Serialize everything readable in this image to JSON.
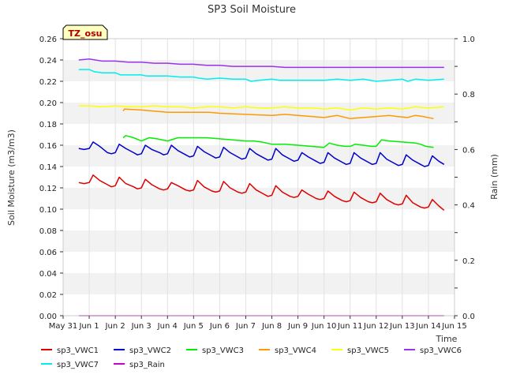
{
  "chart_data": {
    "type": "line",
    "title": "SP3 Soil Moisture",
    "xlabel": "Time",
    "ylabel": "Soil Moisture (m3/m3)",
    "y2label": "Rain (mm)",
    "badge": "TZ_osu",
    "ylim": [
      0,
      0.26
    ],
    "y2lim": [
      0,
      1.0
    ],
    "xlim": [
      "May 31",
      "Jun 15"
    ],
    "x_ticks": [
      "May 31",
      "Jun 1",
      "Jun 2",
      "Jun 3",
      "Jun 4",
      "Jun 5",
      "Jun 6",
      "Jun 7",
      "Jun 8",
      "Jun 9",
      "Jun 10",
      "Jun 11",
      "Jun 12",
      "Jun 13",
      "Jun 14",
      "Jun 15"
    ],
    "y_ticks": [
      "0.00",
      "0.02",
      "0.04",
      "0.06",
      "0.08",
      "0.10",
      "0.12",
      "0.14",
      "0.16",
      "0.18",
      "0.20",
      "0.22",
      "0.24",
      "0.26"
    ],
    "y2_ticks": [
      "0.0",
      "0.2",
      "0.4",
      "0.6",
      "0.8",
      "1.0"
    ],
    "grid": true,
    "legend_position": "bottom",
    "series": [
      {
        "name": "sp3_VWC1",
        "color": "#dd0000",
        "axis": "left",
        "points": [
          [
            0.6,
            0.125
          ],
          [
            0.8,
            0.124
          ],
          [
            1.0,
            0.125
          ],
          [
            1.15,
            0.132
          ],
          [
            1.4,
            0.127
          ],
          [
            1.7,
            0.123
          ],
          [
            1.85,
            0.121
          ],
          [
            2.0,
            0.122
          ],
          [
            2.15,
            0.13
          ],
          [
            2.4,
            0.124
          ],
          [
            2.7,
            0.121
          ],
          [
            2.85,
            0.119
          ],
          [
            3.0,
            0.12
          ],
          [
            3.15,
            0.128
          ],
          [
            3.4,
            0.123
          ],
          [
            3.7,
            0.119
          ],
          [
            3.85,
            0.118
          ],
          [
            4.0,
            0.119
          ],
          [
            4.15,
            0.125
          ],
          [
            4.4,
            0.122
          ],
          [
            4.7,
            0.118
          ],
          [
            4.85,
            0.117
          ],
          [
            5.0,
            0.118
          ],
          [
            5.15,
            0.127
          ],
          [
            5.4,
            0.121
          ],
          [
            5.7,
            0.117
          ],
          [
            5.85,
            0.116
          ],
          [
            6.0,
            0.117
          ],
          [
            6.15,
            0.126
          ],
          [
            6.4,
            0.12
          ],
          [
            6.7,
            0.116
          ],
          [
            6.85,
            0.115
          ],
          [
            7.0,
            0.116
          ],
          [
            7.15,
            0.124
          ],
          [
            7.4,
            0.118
          ],
          [
            7.7,
            0.114
          ],
          [
            7.85,
            0.112
          ],
          [
            8.0,
            0.113
          ],
          [
            8.15,
            0.122
          ],
          [
            8.4,
            0.116
          ],
          [
            8.7,
            0.112
          ],
          [
            8.85,
            0.111
          ],
          [
            9.0,
            0.112
          ],
          [
            9.15,
            0.118
          ],
          [
            9.4,
            0.114
          ],
          [
            9.7,
            0.11
          ],
          [
            9.85,
            0.109
          ],
          [
            10.0,
            0.11
          ],
          [
            10.15,
            0.117
          ],
          [
            10.4,
            0.112
          ],
          [
            10.7,
            0.108
          ],
          [
            10.85,
            0.107
          ],
          [
            11.0,
            0.108
          ],
          [
            11.15,
            0.116
          ],
          [
            11.4,
            0.111
          ],
          [
            11.7,
            0.107
          ],
          [
            11.85,
            0.106
          ],
          [
            12.0,
            0.107
          ],
          [
            12.15,
            0.115
          ],
          [
            12.4,
            0.109
          ],
          [
            12.7,
            0.105
          ],
          [
            12.85,
            0.104
          ],
          [
            13.0,
            0.105
          ],
          [
            13.15,
            0.113
          ],
          [
            13.4,
            0.106
          ],
          [
            13.7,
            0.102
          ],
          [
            13.85,
            0.101
          ],
          [
            14.0,
            0.102
          ],
          [
            14.15,
            0.109
          ],
          [
            14.4,
            0.103
          ],
          [
            14.6,
            0.099
          ]
        ]
      },
      {
        "name": "sp3_VWC2",
        "color": "#0000cc",
        "axis": "left",
        "points": [
          [
            0.6,
            0.157
          ],
          [
            0.8,
            0.156
          ],
          [
            1.0,
            0.157
          ],
          [
            1.15,
            0.163
          ],
          [
            1.4,
            0.159
          ],
          [
            1.7,
            0.153
          ],
          [
            1.85,
            0.152
          ],
          [
            2.0,
            0.153
          ],
          [
            2.15,
            0.161
          ],
          [
            2.4,
            0.157
          ],
          [
            2.7,
            0.153
          ],
          [
            2.85,
            0.151
          ],
          [
            3.0,
            0.152
          ],
          [
            3.15,
            0.16
          ],
          [
            3.4,
            0.156
          ],
          [
            3.7,
            0.153
          ],
          [
            3.85,
            0.151
          ],
          [
            4.0,
            0.152
          ],
          [
            4.15,
            0.16
          ],
          [
            4.4,
            0.155
          ],
          [
            4.7,
            0.151
          ],
          [
            4.85,
            0.149
          ],
          [
            5.0,
            0.15
          ],
          [
            5.15,
            0.159
          ],
          [
            5.4,
            0.154
          ],
          [
            5.7,
            0.15
          ],
          [
            5.85,
            0.148
          ],
          [
            6.0,
            0.149
          ],
          [
            6.15,
            0.158
          ],
          [
            6.4,
            0.153
          ],
          [
            6.7,
            0.149
          ],
          [
            6.85,
            0.147
          ],
          [
            7.0,
            0.148
          ],
          [
            7.15,
            0.157
          ],
          [
            7.4,
            0.152
          ],
          [
            7.7,
            0.148
          ],
          [
            7.85,
            0.146
          ],
          [
            8.0,
            0.147
          ],
          [
            8.15,
            0.157
          ],
          [
            8.4,
            0.151
          ],
          [
            8.7,
            0.147
          ],
          [
            8.85,
            0.145
          ],
          [
            9.0,
            0.146
          ],
          [
            9.15,
            0.153
          ],
          [
            9.4,
            0.149
          ],
          [
            9.7,
            0.145
          ],
          [
            9.85,
            0.143
          ],
          [
            10.0,
            0.144
          ],
          [
            10.15,
            0.153
          ],
          [
            10.4,
            0.148
          ],
          [
            10.7,
            0.144
          ],
          [
            10.85,
            0.142
          ],
          [
            11.0,
            0.143
          ],
          [
            11.15,
            0.153
          ],
          [
            11.4,
            0.148
          ],
          [
            11.7,
            0.144
          ],
          [
            11.85,
            0.142
          ],
          [
            12.0,
            0.143
          ],
          [
            12.15,
            0.153
          ],
          [
            12.4,
            0.147
          ],
          [
            12.7,
            0.143
          ],
          [
            12.85,
            0.141
          ],
          [
            13.0,
            0.142
          ],
          [
            13.15,
            0.151
          ],
          [
            13.4,
            0.146
          ],
          [
            13.7,
            0.142
          ],
          [
            13.85,
            0.14
          ],
          [
            14.0,
            0.141
          ],
          [
            14.15,
            0.15
          ],
          [
            14.4,
            0.145
          ],
          [
            14.6,
            0.142
          ]
        ]
      },
      {
        "name": "sp3_VWC3",
        "color": "#00ee00",
        "axis": "left",
        "points": [
          [
            2.3,
            0.167
          ],
          [
            2.4,
            0.169
          ],
          [
            2.7,
            0.167
          ],
          [
            3.0,
            0.164
          ],
          [
            3.3,
            0.167
          ],
          [
            3.6,
            0.166
          ],
          [
            4.0,
            0.164
          ],
          [
            4.4,
            0.167
          ],
          [
            5.0,
            0.167
          ],
          [
            5.5,
            0.167
          ],
          [
            6.0,
            0.166
          ],
          [
            6.5,
            0.165
          ],
          [
            7.0,
            0.164
          ],
          [
            7.3,
            0.164
          ],
          [
            7.6,
            0.163
          ],
          [
            8.0,
            0.161
          ],
          [
            8.5,
            0.161
          ],
          [
            9.0,
            0.16
          ],
          [
            9.5,
            0.159
          ],
          [
            10.0,
            0.158
          ],
          [
            10.2,
            0.162
          ],
          [
            10.5,
            0.16
          ],
          [
            10.8,
            0.159
          ],
          [
            11.0,
            0.159
          ],
          [
            11.2,
            0.161
          ],
          [
            11.5,
            0.16
          ],
          [
            11.8,
            0.159
          ],
          [
            12.0,
            0.159
          ],
          [
            12.2,
            0.165
          ],
          [
            12.5,
            0.164
          ],
          [
            13.0,
            0.163
          ],
          [
            13.5,
            0.162
          ],
          [
            13.7,
            0.161
          ],
          [
            13.9,
            0.159
          ],
          [
            14.2,
            0.158
          ]
        ]
      },
      {
        "name": "sp3_VWC4",
        "color": "#ff9900",
        "axis": "left",
        "points": [
          [
            2.3,
            0.192
          ],
          [
            2.35,
            0.194
          ],
          [
            3.0,
            0.193
          ],
          [
            4.0,
            0.191
          ],
          [
            5.0,
            0.191
          ],
          [
            5.6,
            0.191
          ],
          [
            6.0,
            0.19
          ],
          [
            7.0,
            0.189
          ],
          [
            8.0,
            0.188
          ],
          [
            8.5,
            0.189
          ],
          [
            9.0,
            0.188
          ],
          [
            10.0,
            0.186
          ],
          [
            10.5,
            0.188
          ],
          [
            11.0,
            0.185
          ],
          [
            11.5,
            0.186
          ],
          [
            12.0,
            0.187
          ],
          [
            12.5,
            0.188
          ],
          [
            12.8,
            0.187
          ],
          [
            13.2,
            0.186
          ],
          [
            13.5,
            0.188
          ],
          [
            13.8,
            0.187
          ],
          [
            14.2,
            0.185
          ]
        ]
      },
      {
        "name": "sp3_VWC5",
        "color": "#ffff00",
        "axis": "left",
        "points": [
          [
            0.6,
            0.197
          ],
          [
            1.0,
            0.197
          ],
          [
            1.5,
            0.196
          ],
          [
            2.0,
            0.197
          ],
          [
            2.5,
            0.196
          ],
          [
            3.0,
            0.196
          ],
          [
            3.5,
            0.197
          ],
          [
            4.0,
            0.196
          ],
          [
            4.5,
            0.196
          ],
          [
            5.0,
            0.195
          ],
          [
            5.5,
            0.196
          ],
          [
            6.0,
            0.196
          ],
          [
            6.5,
            0.195
          ],
          [
            7.0,
            0.196
          ],
          [
            7.5,
            0.195
          ],
          [
            8.0,
            0.195
          ],
          [
            8.5,
            0.196
          ],
          [
            9.0,
            0.195
          ],
          [
            9.5,
            0.195
          ],
          [
            10.0,
            0.194
          ],
          [
            10.5,
            0.195
          ],
          [
            11.0,
            0.193
          ],
          [
            11.5,
            0.195
          ],
          [
            12.0,
            0.194
          ],
          [
            12.5,
            0.195
          ],
          [
            13.0,
            0.194
          ],
          [
            13.5,
            0.196
          ],
          [
            14.0,
            0.195
          ],
          [
            14.6,
            0.196
          ]
        ]
      },
      {
        "name": "sp3_VWC6",
        "color": "#9933ee",
        "axis": "left",
        "points": [
          [
            0.6,
            0.24
          ],
          [
            1.0,
            0.241
          ],
          [
            1.5,
            0.239
          ],
          [
            2.0,
            0.239
          ],
          [
            2.5,
            0.238
          ],
          [
            3.0,
            0.238
          ],
          [
            3.5,
            0.237
          ],
          [
            4.0,
            0.237
          ],
          [
            4.5,
            0.236
          ],
          [
            5.0,
            0.236
          ],
          [
            5.5,
            0.235
          ],
          [
            6.0,
            0.235
          ],
          [
            6.5,
            0.234
          ],
          [
            7.0,
            0.234
          ],
          [
            7.5,
            0.234
          ],
          [
            8.0,
            0.234
          ],
          [
            8.5,
            0.233
          ],
          [
            9.0,
            0.233
          ],
          [
            9.5,
            0.233
          ],
          [
            10.0,
            0.233
          ],
          [
            10.5,
            0.233
          ],
          [
            11.0,
            0.233
          ],
          [
            11.5,
            0.233
          ],
          [
            12.0,
            0.233
          ],
          [
            12.5,
            0.233
          ],
          [
            13.0,
            0.233
          ],
          [
            13.5,
            0.233
          ],
          [
            14.0,
            0.233
          ],
          [
            14.6,
            0.233
          ]
        ]
      },
      {
        "name": "sp3_VWC7",
        "color": "#00eeee",
        "axis": "left",
        "points": [
          [
            0.6,
            0.231
          ],
          [
            1.0,
            0.231
          ],
          [
            1.2,
            0.229
          ],
          [
            1.5,
            0.228
          ],
          [
            2.0,
            0.228
          ],
          [
            2.2,
            0.226
          ],
          [
            2.5,
            0.226
          ],
          [
            3.0,
            0.226
          ],
          [
            3.2,
            0.225
          ],
          [
            3.5,
            0.225
          ],
          [
            4.0,
            0.225
          ],
          [
            4.5,
            0.224
          ],
          [
            5.0,
            0.224
          ],
          [
            5.2,
            0.223
          ],
          [
            5.5,
            0.222
          ],
          [
            6.0,
            0.223
          ],
          [
            6.5,
            0.222
          ],
          [
            7.0,
            0.222
          ],
          [
            7.2,
            0.22
          ],
          [
            7.5,
            0.221
          ],
          [
            8.0,
            0.222
          ],
          [
            8.3,
            0.221
          ],
          [
            8.6,
            0.221
          ],
          [
            9.0,
            0.221
          ],
          [
            9.5,
            0.221
          ],
          [
            10.0,
            0.221
          ],
          [
            10.5,
            0.222
          ],
          [
            11.0,
            0.221
          ],
          [
            11.5,
            0.222
          ],
          [
            12.0,
            0.22
          ],
          [
            12.5,
            0.221
          ],
          [
            13.0,
            0.222
          ],
          [
            13.2,
            0.22
          ],
          [
            13.5,
            0.222
          ],
          [
            14.0,
            0.221
          ],
          [
            14.6,
            0.222
          ]
        ]
      },
      {
        "name": "sp3_Rain",
        "color": "#cc00cc",
        "axis": "right",
        "points": [
          [
            0.6,
            0.0
          ],
          [
            14.6,
            0.0
          ]
        ]
      }
    ]
  }
}
